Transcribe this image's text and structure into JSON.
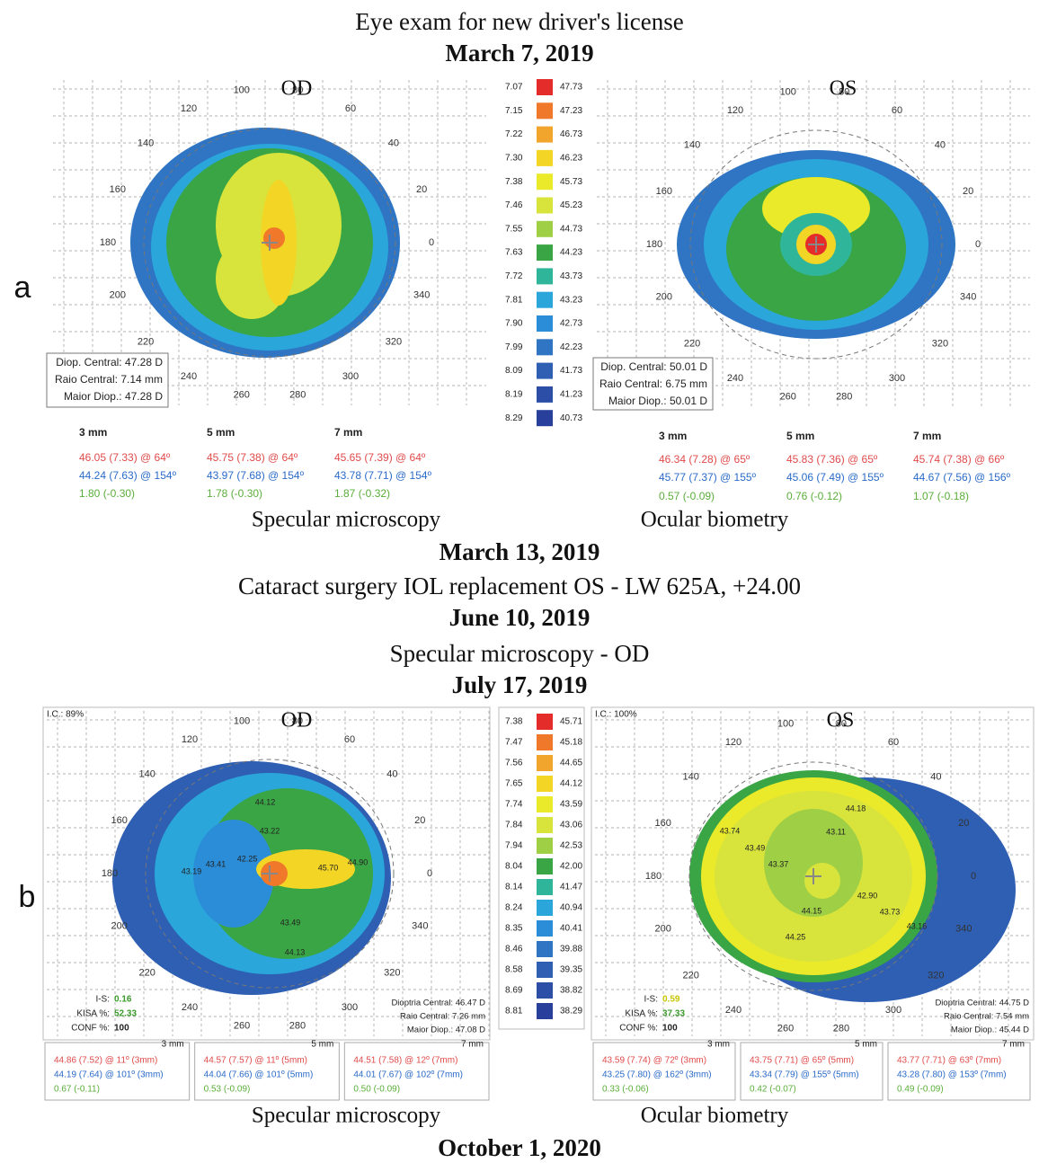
{
  "lines": [
    "Eye exam for new driver's license",
    "March 7, 2019",
    "March 13, 2019",
    "Cataract surgery IOL replacement OS - LW 625A, +24.00",
    "June 10, 2019",
    "Specular microscopy - OD",
    "July 17, 2019",
    "October 1, 2020"
  ],
  "angle_labels": [
    100,
    120,
    140,
    160,
    180,
    200,
    220,
    240,
    260,
    280,
    300,
    320,
    340,
    0,
    20,
    40,
    60,
    80
  ],
  "panels": [
    {
      "label": "a",
      "captions": [
        "Specular microscopy",
        "Ocular biometry"
      ],
      "scale": [
        {
          "mm": "7.07",
          "d": "47.73",
          "color": "#e42c2a"
        },
        {
          "mm": "7.15",
          "d": "47.23",
          "color": "#f0782a"
        },
        {
          "mm": "7.22",
          "d": "46.73",
          "color": "#f2a52c"
        },
        {
          "mm": "7.30",
          "d": "46.23",
          "color": "#f3d526"
        },
        {
          "mm": "7.38",
          "d": "45.73",
          "color": "#eaea2a"
        },
        {
          "mm": "7.46",
          "d": "45.23",
          "color": "#d8e43c"
        },
        {
          "mm": "7.55",
          "d": "44.73",
          "color": "#9fcf45"
        },
        {
          "mm": "7.63",
          "d": "44.23",
          "color": "#3aa544"
        },
        {
          "mm": "7.72",
          "d": "43.73",
          "color": "#2fb69a"
        },
        {
          "mm": "7.81",
          "d": "43.23",
          "color": "#2aa6db"
        },
        {
          "mm": "7.90",
          "d": "42.73",
          "color": "#2b8dd8"
        },
        {
          "mm": "7.99",
          "d": "42.23",
          "color": "#2f75c4"
        },
        {
          "mm": "8.09",
          "d": "41.73",
          "color": "#2f5fb2"
        },
        {
          "mm": "8.19",
          "d": "41.23",
          "color": "#2c4ea6"
        },
        {
          "mm": "8.29",
          "d": "40.73",
          "color": "#28409c"
        }
      ],
      "maps": [
        {
          "eye": "OD",
          "info": [
            "Diop. Central: 47.28 D",
            "Raio Central: 7.14 mm",
            "Maior Diop.: 47.28 D"
          ],
          "measurements": [
            {
              "header": "3 mm",
              "rows": [
                "46.05 (7.33) @ 64º",
                "44.24 (7.63) @ 154º",
                "1.80 (-0.30)"
              ]
            },
            {
              "header": "5 mm",
              "rows": [
                "45.75 (7.38) @ 64º",
                "43.97 (7.68) @ 154º",
                "1.78 (-0.30)"
              ]
            },
            {
              "header": "7 mm",
              "rows": [
                "45.65 (7.39) @ 64º",
                "43.78 (7.71) @ 154º",
                "1.87 (-0.32)"
              ]
            }
          ]
        },
        {
          "eye": "OS",
          "info": [
            "Diop. Central: 50.01 D",
            "Raio Central: 6.75 mm",
            "Maior Diop.: 50.01 D"
          ],
          "measurements": [
            {
              "header": "3 mm",
              "rows": [
                "46.34 (7.28) @ 65º",
                "45.77 (7.37) @ 155º",
                "0.57 (-0.09)"
              ]
            },
            {
              "header": "5 mm",
              "rows": [
                "45.83 (7.36) @ 65º",
                "45.06 (7.49) @ 155º",
                "0.76 (-0.12)"
              ]
            },
            {
              "header": "7 mm",
              "rows": [
                "45.74 (7.38) @ 66º",
                "44.67 (7.56) @ 156º",
                "1.07 (-0.18)"
              ]
            }
          ]
        }
      ]
    },
    {
      "label": "b",
      "captions": [
        "Specular microscopy",
        "Ocular biometry"
      ],
      "scale": [
        {
          "mm": "7.38",
          "d": "45.71",
          "color": "#e42c2a"
        },
        {
          "mm": "7.47",
          "d": "45.18",
          "color": "#f0782a"
        },
        {
          "mm": "7.56",
          "d": "44.65",
          "color": "#f2a52c"
        },
        {
          "mm": "7.65",
          "d": "44.12",
          "color": "#f3d526"
        },
        {
          "mm": "7.74",
          "d": "43.59",
          "color": "#eaea2a"
        },
        {
          "mm": "7.84",
          "d": "43.06",
          "color": "#d8e43c"
        },
        {
          "mm": "7.94",
          "d": "42.53",
          "color": "#9fcf45"
        },
        {
          "mm": "8.04",
          "d": "42.00",
          "color": "#3aa544"
        },
        {
          "mm": "8.14",
          "d": "41.47",
          "color": "#2fb69a"
        },
        {
          "mm": "8.24",
          "d": "40.94",
          "color": "#2aa6db"
        },
        {
          "mm": "8.35",
          "d": "40.41",
          "color": "#2b8dd8"
        },
        {
          "mm": "8.46",
          "d": "39.88",
          "color": "#2f75c4"
        },
        {
          "mm": "8.58",
          "d": "39.35",
          "color": "#2f5fb2"
        },
        {
          "mm": "8.69",
          "d": "38.82",
          "color": "#2c4ea6"
        },
        {
          "mm": "8.81",
          "d": "38.29",
          "color": "#28409c"
        }
      ],
      "maps": [
        {
          "eye": "OD",
          "ic": "I.C.: 89%",
          "indices": [
            [
              "I-S:",
              "0.16"
            ],
            [
              "KISA %:",
              "52.33"
            ],
            [
              "CONF %:",
              "100"
            ]
          ],
          "info": [
            "Dioptria Central: 46.47 D",
            "Raio Central: 7.26 mm",
            "Maior Diop.: 47.08 D"
          ],
          "annotations": [
            "44.12",
            "43.22",
            "45.70",
            "44.90",
            "42.25",
            "43.41",
            "43.19",
            "43.49",
            "44.13"
          ],
          "measurements": [
            {
              "header": "3 mm",
              "rows": [
                "44.86 (7.52) @ 11º (3mm)",
                "44.19 (7.64) @ 101º (3mm)",
                "0.67 (-0.11)"
              ]
            },
            {
              "header": "5 mm",
              "rows": [
                "44.57 (7.57) @ 11º (5mm)",
                "44.04 (7.66) @ 101º (5mm)",
                "0.53 (-0.09)"
              ]
            },
            {
              "header": "7 mm",
              "rows": [
                "44.51 (7.58) @ 12º (7mm)",
                "44.01 (7.67) @ 102º (7mm)",
                "0.50 (-0.09)"
              ]
            }
          ]
        },
        {
          "eye": "OS",
          "ic": "I.C.: 100%",
          "indices": [
            [
              "I-S:",
              "0.59"
            ],
            [
              "KISA %:",
              "37.33"
            ],
            [
              "CONF %:",
              "100"
            ]
          ],
          "info": [
            "Dioptria Central: 44.75 D",
            "Raio Central: 7.54 mm",
            "Maior Diop.: 45.44 D"
          ],
          "annotations": [
            "44.18",
            "43.11",
            "43.74",
            "43.49",
            "43.37",
            "42.90",
            "44.15",
            "43.73",
            "43.16",
            "44.25"
          ],
          "measurements": [
            {
              "header": "3 mm",
              "rows": [
                "43.59 (7.74) @ 72º (3mm)",
                "43.25 (7.80) @ 162º (3mm)",
                "0.33 (-0.06)"
              ]
            },
            {
              "header": "5 mm",
              "rows": [
                "43.75 (7.71) @ 65º (5mm)",
                "43.34 (7.79) @ 155º (5mm)",
                "0.42 (-0.07)"
              ]
            },
            {
              "header": "7 mm",
              "rows": [
                "43.77 (7.71) @ 63º (7mm)",
                "43.28 (7.80) @ 153º (7mm)",
                "0.49 (-0.09)"
              ]
            }
          ]
        }
      ]
    }
  ]
}
